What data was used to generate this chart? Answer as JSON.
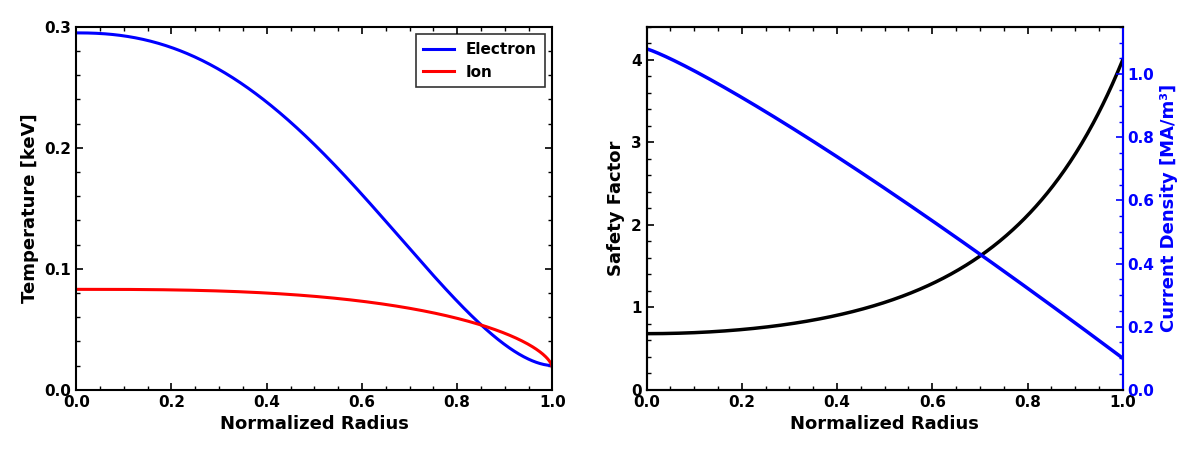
{
  "left_panel": {
    "electron_color": "#0000FF",
    "ion_color": "#FF0000",
    "Te0": 0.295,
    "Te1": 0.02,
    "Ti0": 0.083,
    "Ti1": 0.018,
    "xlabel": "Normalized Radius",
    "ylabel": "Temperature [keV]",
    "ylim": [
      0.0,
      0.3
    ],
    "xlim": [
      0.0,
      1.0
    ],
    "yticks": [
      0.0,
      0.1,
      0.2,
      0.3
    ],
    "xticks": [
      0.0,
      0.2,
      0.4,
      0.6,
      0.8,
      1.0
    ],
    "legend_labels": [
      "Electron",
      "Ion"
    ],
    "linewidth": 2.2
  },
  "right_panel": {
    "safety_color": "#000000",
    "current_color": "#0000FF",
    "q0": 0.68,
    "q1": 4.0,
    "J0": 1.08,
    "J1": 0.1,
    "xlabel": "Normalized Radius",
    "ylabel_left": "Safety Factor",
    "ylabel_right": "Current Density [MA/m³]",
    "ylim_left": [
      0.0,
      4.4
    ],
    "ylim_right": [
      0.0,
      1.15
    ],
    "xlim": [
      0.0,
      1.0
    ],
    "yticks_left": [
      0,
      1,
      2,
      3,
      4
    ],
    "yticks_right": [
      0.0,
      0.2,
      0.4,
      0.6,
      0.8,
      1.0
    ],
    "xticks": [
      0.0,
      0.2,
      0.4,
      0.6,
      0.8,
      1.0
    ],
    "linewidth": 2.5
  },
  "figure_bgcolor": "#FFFFFF",
  "axes_bgcolor": "#FFFFFF",
  "tick_labelsize": 11,
  "label_fontsize": 13,
  "legend_fontsize": 11
}
